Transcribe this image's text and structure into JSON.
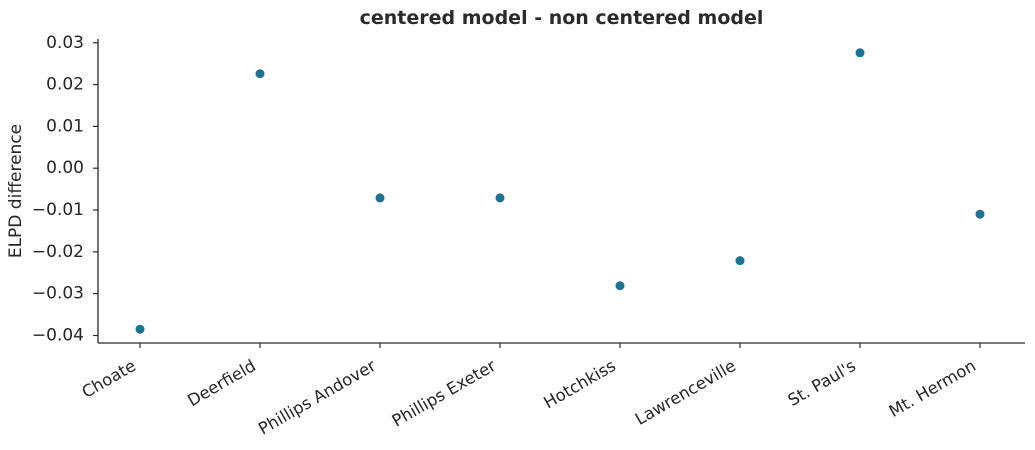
{
  "figure": {
    "background": "#ffffff"
  },
  "chart_data": {
    "type": "scatter",
    "title": "centered model - non centered model",
    "xlabel": "",
    "ylabel": "ELPD difference",
    "categories": [
      "Choate",
      "Deerfield",
      "Phillips Andover",
      "Phillips Exeter",
      "Hotchkiss",
      "Lawrenceville",
      "St. Paul's",
      "Mt. Hermon"
    ],
    "values": [
      -0.0385,
      0.0226,
      -0.0071,
      -0.0071,
      -0.0281,
      -0.0221,
      0.0276,
      -0.011
    ],
    "yticks": [
      0.03,
      0.02,
      0.01,
      0.0,
      -0.01,
      -0.02,
      -0.03,
      -0.04
    ],
    "ylim": [
      -0.0418,
      0.0309
    ],
    "xlim": [
      -0.35,
      7.375
    ],
    "x_tick_rotation": 30,
    "grid": false,
    "legend": false,
    "marker_color": "#1c7293",
    "axis_color": "#2b2b2b",
    "text_color": "#262626"
  }
}
